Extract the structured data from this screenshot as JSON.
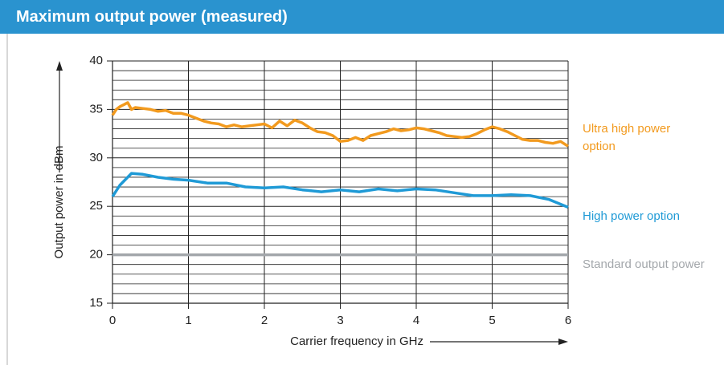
{
  "chart_data": {
    "type": "line",
    "title": "Maximum output power (measured)",
    "x_label": "Carrier frequency in GHz",
    "y_label": "Output power in dBm",
    "xlim": [
      0,
      6
    ],
    "xticks": [
      0,
      1,
      2,
      3,
      4,
      5,
      6
    ],
    "ylim": [
      15,
      40
    ],
    "yticks": [
      15,
      20,
      25,
      30,
      35,
      40
    ],
    "grid": true,
    "series": [
      {
        "name": "Ultra high power option",
        "color": "#f29a1e",
        "x": [
          0,
          0.05,
          0.1,
          0.15,
          0.2,
          0.25,
          0.3,
          0.4,
          0.5,
          0.6,
          0.7,
          0.8,
          0.9,
          1.0,
          1.1,
          1.2,
          1.3,
          1.4,
          1.5,
          1.6,
          1.7,
          1.8,
          1.9,
          2.0,
          2.1,
          2.2,
          2.3,
          2.4,
          2.5,
          2.6,
          2.7,
          2.8,
          2.9,
          3.0,
          3.1,
          3.2,
          3.3,
          3.4,
          3.5,
          3.6,
          3.7,
          3.8,
          3.9,
          4.0,
          4.1,
          4.2,
          4.3,
          4.4,
          4.5,
          4.6,
          4.7,
          4.8,
          4.9,
          5.0,
          5.1,
          5.2,
          5.3,
          5.4,
          5.5,
          5.6,
          5.7,
          5.8,
          5.9,
          6.0
        ],
        "values": [
          34.4,
          35,
          35.3,
          35.5,
          35.7,
          35,
          35.2,
          35.1,
          35.0,
          34.8,
          34.9,
          34.6,
          34.6,
          34.4,
          34.1,
          33.8,
          33.6,
          33.5,
          33.2,
          33.4,
          33.2,
          33.3,
          33.4,
          33.5,
          33.1,
          33.8,
          33.3,
          33.9,
          33.6,
          33.1,
          32.7,
          32.6,
          32.3,
          31.7,
          31.8,
          32.1,
          31.8,
          32.3,
          32.5,
          32.7,
          33.0,
          32.8,
          32.9,
          33.1,
          33.0,
          32.8,
          32.6,
          32.3,
          32.2,
          32.1,
          32.2,
          32.5,
          32.9,
          33.2,
          33.0,
          32.7,
          32.3,
          31.9,
          31.8,
          31.8,
          31.6,
          31.5,
          31.7,
          31.2
        ]
      },
      {
        "name": "High power option",
        "color": "#1f9ad6",
        "x": [
          0,
          0.1,
          0.25,
          0.4,
          0.6,
          0.8,
          1.0,
          1.25,
          1.5,
          1.75,
          2.0,
          2.25,
          2.5,
          2.75,
          3.0,
          3.25,
          3.5,
          3.75,
          4.0,
          4.25,
          4.5,
          4.75,
          5.0,
          5.25,
          5.5,
          5.75,
          6.0
        ],
        "values": [
          26,
          27.2,
          28.4,
          28.3,
          28.0,
          27.8,
          27.7,
          27.4,
          27.4,
          27.0,
          26.9,
          27.0,
          26.7,
          26.5,
          26.7,
          26.5,
          26.8,
          26.6,
          26.8,
          26.7,
          26.4,
          26.1,
          26.1,
          26.2,
          26.1,
          25.7,
          24.9
        ]
      },
      {
        "name": "Standard output power",
        "color": "#a3a7ab",
        "x": [
          0,
          6
        ],
        "values": [
          20,
          20
        ]
      }
    ]
  }
}
